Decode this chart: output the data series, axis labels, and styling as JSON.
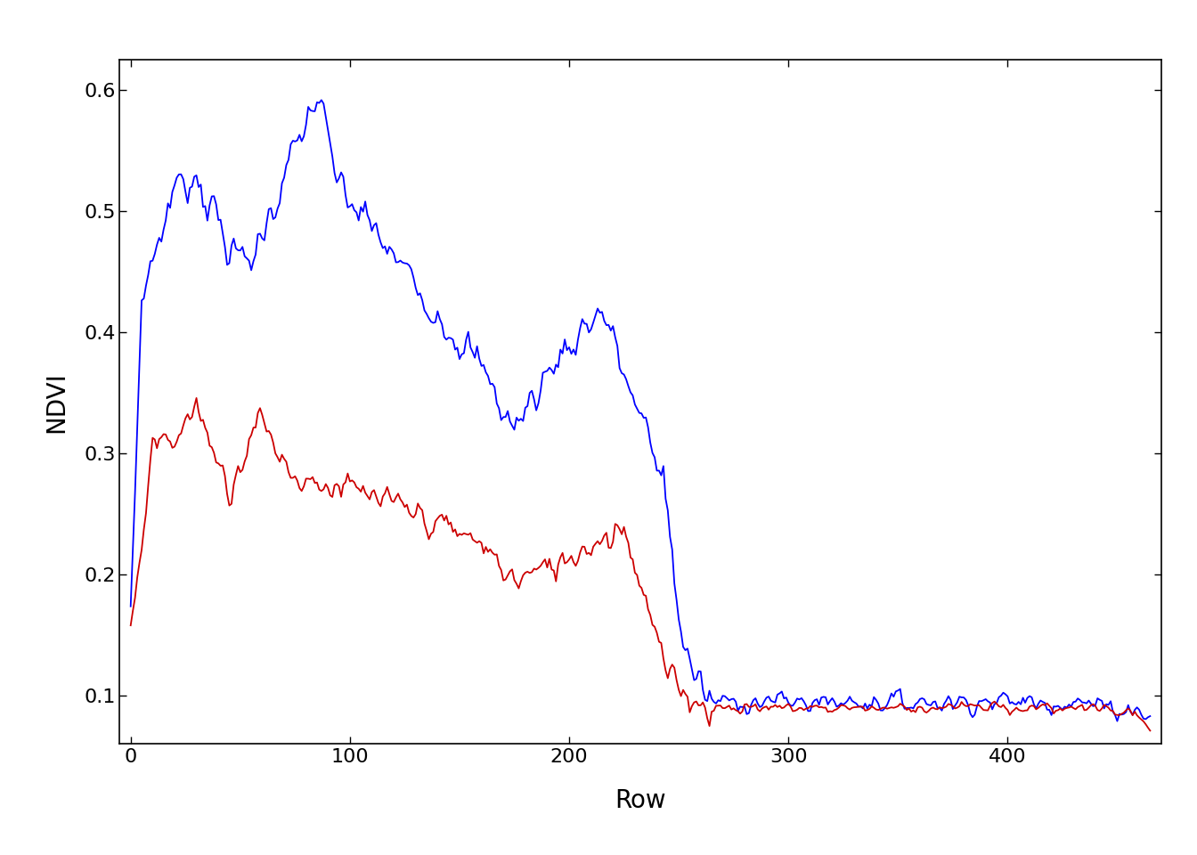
{
  "title": "",
  "xlabel": "Row",
  "ylabel": "NDVI",
  "xlim": [
    -5,
    470
  ],
  "ylim": [
    0.06,
    0.625
  ],
  "yticks": [
    0.1,
    0.2,
    0.3,
    0.4,
    0.5,
    0.6
  ],
  "xticks": [
    0,
    100,
    200,
    300,
    400
  ],
  "blue_color": "#0000FF",
  "red_color": "#CC0000",
  "linewidth": 1.3,
  "background_color": "#FFFFFF",
  "figure_bg": "#FFFFFF"
}
